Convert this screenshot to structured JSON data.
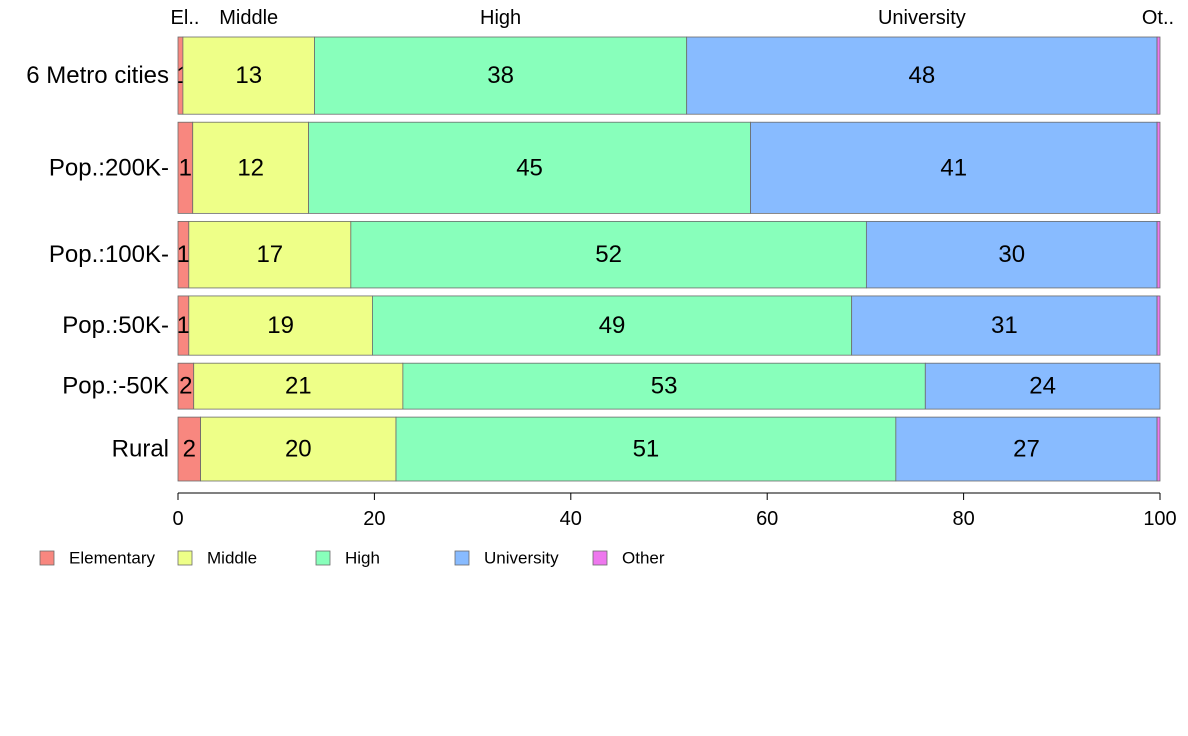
{
  "chart_data": {
    "type": "bar",
    "orientation": "horizontal",
    "stacked": true,
    "normalized_percent": true,
    "categories": [
      "6 Metro cities",
      "Pop.:200K-",
      "Pop.:100K-",
      "Pop.:50K-",
      "Pop.:-50K",
      "Rural"
    ],
    "bar_weights": [
      1.16,
      1.37,
      1.0,
      0.89,
      0.69,
      0.96
    ],
    "series": [
      {
        "name": "Elementary",
        "color": "#f8877f",
        "values": [
          0.5,
          1.5,
          1.1,
          1.1,
          1.6,
          2.3
        ],
        "labels": [
          "1",
          "1",
          "1",
          "1",
          "2",
          "2"
        ]
      },
      {
        "name": "Middle",
        "color": "#eeff88",
        "values": [
          13.4,
          11.8,
          16.5,
          18.7,
          21.3,
          19.9
        ],
        "labels": [
          "13",
          "12",
          "17",
          "19",
          "21",
          "20"
        ]
      },
      {
        "name": "High",
        "color": "#88ffbb",
        "values": [
          37.9,
          45.0,
          52.5,
          48.8,
          53.2,
          50.9
        ],
        "labels": [
          "38",
          "45",
          "52",
          "49",
          "53",
          "51"
        ]
      },
      {
        "name": "University",
        "color": "#88bbff",
        "values": [
          47.9,
          41.4,
          29.6,
          31.1,
          23.9,
          26.6
        ],
        "labels": [
          "48",
          "41",
          "30",
          "31",
          "24",
          "27"
        ]
      },
      {
        "name": "Other",
        "color": "#ee77ee",
        "values": [
          0.3,
          0.3,
          0.3,
          0.3,
          0.0,
          0.3
        ],
        "labels": [
          "",
          "",
          "",
          "",
          "",
          ""
        ]
      }
    ],
    "top_labels": [
      "El..",
      "Middle",
      "High",
      "University",
      "Ot.."
    ],
    "xlim": [
      0,
      100
    ],
    "xticks": [
      0,
      20,
      40,
      60,
      80,
      100
    ],
    "xtick_labels": [
      "0",
      "20",
      "40",
      "60",
      "80",
      "100"
    ],
    "legend": {
      "position": "bottom-left",
      "entries": [
        "Elementary",
        "Middle",
        "High",
        "University",
        "Other"
      ]
    },
    "grid": false
  }
}
